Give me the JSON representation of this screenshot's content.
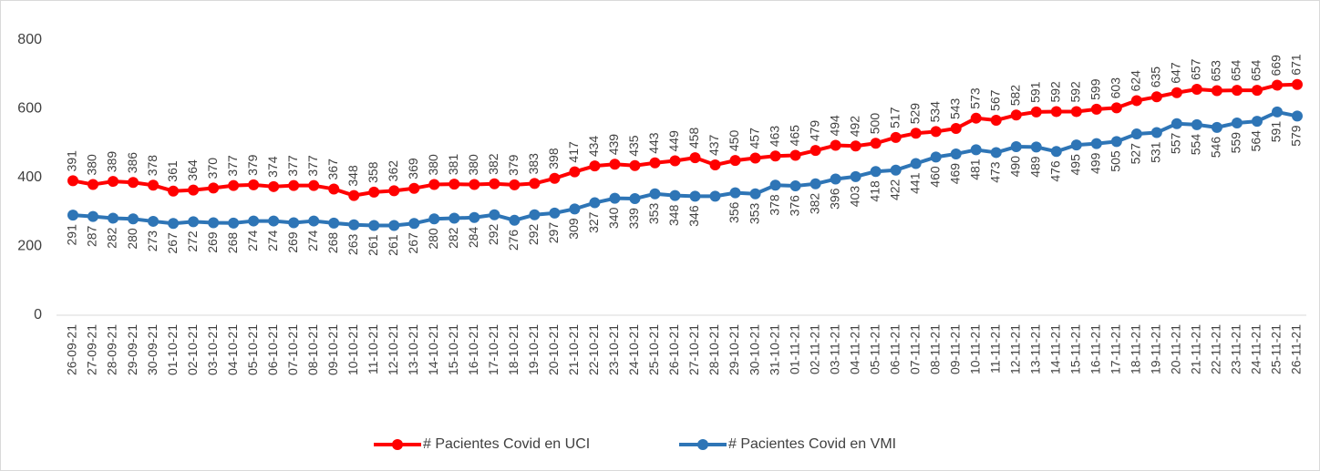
{
  "chart_data": {
    "type": "line",
    "categories": [
      "26-09-21",
      "27-09-21",
      "28-09-21",
      "29-09-21",
      "30-09-21",
      "01-10-21",
      "02-10-21",
      "03-10-21",
      "04-10-21",
      "05-10-21",
      "06-10-21",
      "07-10-21",
      "08-10-21",
      "09-10-21",
      "10-10-21",
      "11-10-21",
      "12-10-21",
      "13-10-21",
      "14-10-21",
      "15-10-21",
      "16-10-21",
      "17-10-21",
      "18-10-21",
      "19-10-21",
      "20-10-21",
      "21-10-21",
      "22-10-21",
      "23-10-21",
      "24-10-21",
      "25-10-21",
      "26-10-21",
      "27-10-21",
      "28-10-21",
      "29-10-21",
      "30-10-21",
      "31-10-21",
      "01-11-21",
      "02-11-21",
      "03-11-21",
      "04-11-21",
      "05-11-21",
      "06-11-21",
      "07-11-21",
      "08-11-21",
      "09-11-21",
      "10-11-21",
      "11-11-21",
      "12-11-21",
      "13-11-21",
      "14-11-21",
      "15-11-21",
      "16-11-21",
      "17-11-21",
      "18-11-21",
      "19-11-21",
      "20-11-21",
      "21-11-21",
      "22-11-21",
      "23-11-21",
      "24-11-21",
      "25-11-21",
      "26-11-21"
    ],
    "series": [
      {
        "name": "# Pacientes Covid en UCI",
        "color": "#ff0000",
        "values": [
          391,
          380,
          389,
          386,
          378,
          361,
          364,
          370,
          377,
          379,
          374,
          377,
          377,
          367,
          348,
          358,
          362,
          369,
          380,
          381,
          380,
          382,
          379,
          383,
          398,
          417,
          434,
          439,
          435,
          443,
          449,
          458,
          437,
          450,
          457,
          463,
          465,
          479,
          494,
          492,
          500,
          517,
          529,
          534,
          543,
          573,
          567,
          582,
          591,
          592,
          592,
          599,
          603,
          624,
          635,
          647,
          657,
          653,
          654,
          654,
          669,
          671
        ]
      },
      {
        "name": "# Pacientes Covid en VMI",
        "color": "#2e75b6",
        "values": [
          291,
          287,
          282,
          280,
          273,
          267,
          272,
          269,
          268,
          274,
          274,
          269,
          274,
          268,
          263,
          261,
          261,
          267,
          280,
          282,
          284,
          292,
          276,
          292,
          297,
          309,
          327,
          340,
          339,
          353,
          348,
          346,
          346,
          356,
          353,
          378,
          376,
          382,
          396,
          403,
          418,
          422,
          441,
          460,
          469,
          481,
          473,
          490,
          489,
          476,
          495,
          499,
          505,
          527,
          531,
          557,
          554,
          546,
          559,
          564,
          591,
          579
        ],
        "value_labels": [
          "291",
          "287",
          "282",
          "280",
          "273",
          "267",
          "272",
          "269",
          "268",
          "274",
          "274",
          "269",
          "274",
          "268",
          "263",
          "261",
          "261",
          "267",
          "280",
          "282",
          "284",
          "292",
          "276",
          "292",
          "297",
          "309",
          "327",
          "340",
          "339",
          "353",
          "348",
          "346",
          null,
          "356",
          "353",
          "378",
          "376",
          "382",
          "396",
          "403",
          "418",
          "422",
          "441",
          "460",
          "469",
          "481",
          "473",
          "490",
          "489",
          "476",
          "495",
          "499",
          "505",
          "527",
          "531",
          "557",
          "554",
          "546",
          "559",
          "564",
          "591",
          "579"
        ]
      }
    ],
    "ylim": [
      0,
      800
    ],
    "yticks": [
      0,
      200,
      400,
      600,
      800
    ],
    "grid": false,
    "legend": "bottom"
  }
}
